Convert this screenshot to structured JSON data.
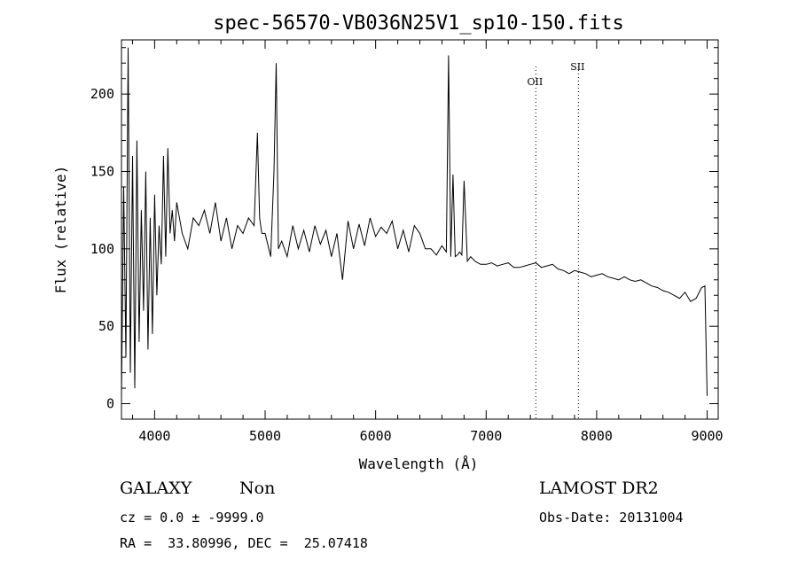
{
  "chart_data": {
    "type": "line",
    "title": "spec-56570-VB036N25V1_sp10-150.fits",
    "xlabel": "Wavelength (Å)",
    "ylabel": "Flux (relative)",
    "xlim": [
      3700,
      9100
    ],
    "ylim": [
      -10,
      235
    ],
    "x_ticks": [
      4000,
      5000,
      6000,
      7000,
      8000,
      9000
    ],
    "y_ticks": [
      0,
      50,
      100,
      150,
      200
    ],
    "grid": false,
    "line_color": "#000000",
    "series": [
      {
        "x": [
          3700,
          3720,
          3740,
          3760,
          3780,
          3800,
          3820,
          3840,
          3860,
          3880,
          3900,
          3920,
          3940,
          3960,
          3980,
          4000,
          4020,
          4040,
          4060,
          4080,
          4100,
          4120,
          4140,
          4160,
          4180,
          4200,
          4250,
          4300,
          4350,
          4400,
          4450,
          4500,
          4550,
          4600,
          4650,
          4700,
          4750,
          4800,
          4850,
          4900,
          4930,
          4950,
          4970,
          5000,
          5050,
          5080,
          5100,
          5120,
          5150,
          5200,
          5250,
          5300,
          5350,
          5400,
          5450,
          5500,
          5550,
          5600,
          5650,
          5700,
          5750,
          5800,
          5850,
          5900,
          5950,
          6000,
          6050,
          6100,
          6150,
          6200,
          6250,
          6300,
          6350,
          6400,
          6450,
          6500,
          6550,
          6600,
          6640,
          6660,
          6680,
          6700,
          6720,
          6740,
          6760,
          6780,
          6800,
          6830,
          6860,
          6900,
          6950,
          7000,
          7050,
          7100,
          7150,
          7200,
          7250,
          7300,
          7350,
          7400,
          7450,
          7500,
          7550,
          7600,
          7650,
          7700,
          7750,
          7800,
          7850,
          7900,
          7950,
          8000,
          8050,
          8100,
          8150,
          8200,
          8250,
          8300,
          8350,
          8400,
          8450,
          8500,
          8550,
          8600,
          8650,
          8700,
          8750,
          8800,
          8850,
          8900,
          8950,
          8980,
          9000
        ],
        "y": [
          5,
          140,
          30,
          230,
          20,
          160,
          10,
          170,
          40,
          125,
          60,
          150,
          35,
          120,
          45,
          135,
          70,
          115,
          90,
          160,
          95,
          165,
          110,
          125,
          105,
          130,
          110,
          100,
          120,
          115,
          125,
          110,
          130,
          105,
          120,
          100,
          115,
          110,
          120,
          115,
          175,
          120,
          110,
          110,
          95,
          150,
          220,
          100,
          105,
          95,
          115,
          100,
          112,
          98,
          115,
          103,
          112,
          95,
          110,
          80,
          118,
          100,
          116,
          102,
          120,
          108,
          114,
          110,
          118,
          100,
          112,
          98,
          115,
          110,
          100,
          100,
          96,
          102,
          98,
          225,
          95,
          148,
          95,
          96,
          98,
          96,
          144,
          92,
          95,
          92,
          90,
          90,
          91,
          89,
          90,
          91,
          88,
          88,
          89,
          90,
          91,
          88,
          89,
          90,
          87,
          86,
          84,
          86,
          85,
          84,
          82,
          83,
          84,
          82,
          81,
          80,
          82,
          80,
          79,
          80,
          78,
          76,
          75,
          73,
          72,
          70,
          68,
          72,
          66,
          68,
          75,
          76,
          5
        ]
      }
    ],
    "annotations": [
      {
        "text": "OII",
        "x": 7450
      },
      {
        "text": "SII",
        "x": 7835
      }
    ]
  },
  "info": {
    "object_class": "GALAXY",
    "subclass": "Non",
    "survey": "LAMOST DR2",
    "cz_line": "cz = 0.0 ± -9999.0",
    "obs_date_line": "Obs-Date: 20131004",
    "coords_line": "RA =  33.80996, DEC =  25.07418"
  }
}
